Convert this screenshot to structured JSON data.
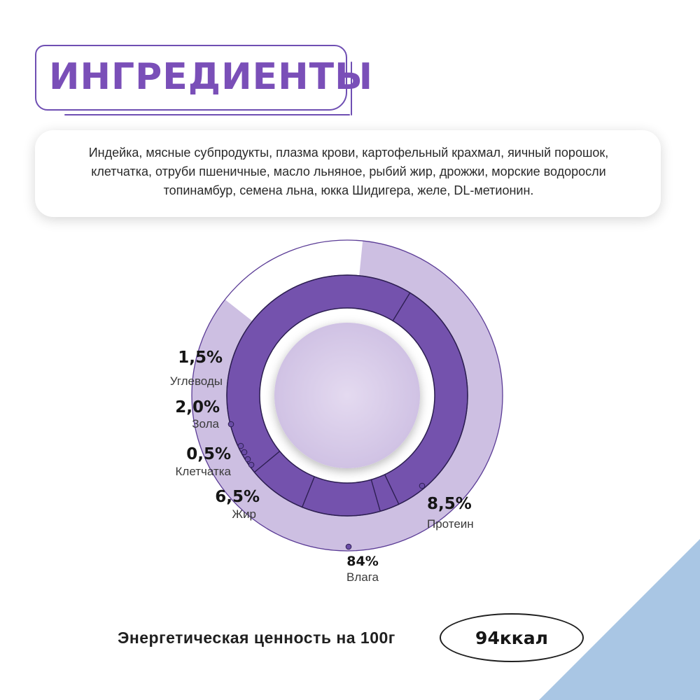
{
  "title": "ИНГРЕДИЕНТЫ",
  "ingredients": {
    "lines": [
      "Индейка, мясные субпродукты, плазма крови, картофельный крахмал, яичный порошок,",
      "клетчатка, отруби пшеничные,  масло льняное, рыбий жир, дрожжи, морские водоросли",
      "топинамбур, семена льна, юкка Шидигера, желе, DL-метионин."
    ]
  },
  "chart_data": {
    "type": "pie",
    "rings": [
      {
        "name": "outer",
        "series": [
          {
            "label": "Влага",
            "value": 84,
            "value_text": "84%"
          }
        ]
      },
      {
        "name": "inner",
        "series": [
          {
            "label": "Протеин",
            "value": 8.5,
            "value_text": "8,5%"
          },
          {
            "label": "Жир",
            "value": 6.5,
            "value_text": "6,5%"
          },
          {
            "label": "Клетчатка",
            "value": 0.5,
            "value_text": "0,5%"
          },
          {
            "label": "Зола",
            "value": 2.0,
            "value_text": "2,0%"
          },
          {
            "label": "Углеводы",
            "value": 1.5,
            "value_text": "1,5%"
          }
        ]
      }
    ],
    "labels": [
      {
        "label": "Углеводы",
        "value_text": "1,5%"
      },
      {
        "label": "Зола",
        "value_text": "2,0%"
      },
      {
        "label": "Клетчатка",
        "value_text": "0,5%"
      },
      {
        "label": "Жир",
        "value_text": "6,5%"
      },
      {
        "label": "Протеин",
        "value_text": "8,5%"
      },
      {
        "label": "Влага",
        "value_text": "84%"
      }
    ],
    "colors": {
      "outer_light": "#cdbfe2",
      "inner_dark": "#7452ad",
      "center_disc": "#dcd0ea",
      "outline": "#5b3c96",
      "white_gap": "#ffffff"
    }
  },
  "energy": {
    "label": "Энергетическая ценность на 100г",
    "value": "94ккал"
  },
  "decor": {
    "corner_color": "#a9c6e4"
  }
}
